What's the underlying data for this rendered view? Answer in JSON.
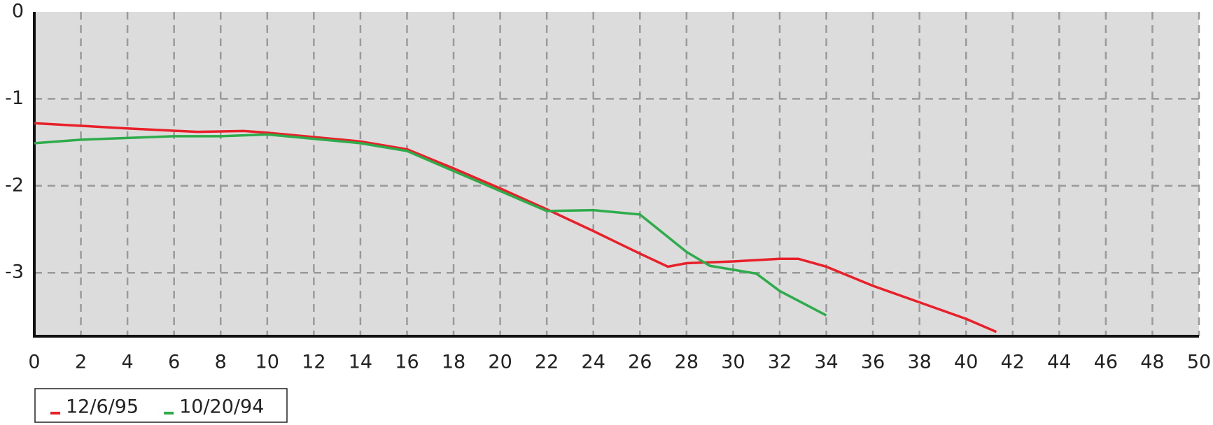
{
  "chart_data": {
    "type": "line",
    "series": [
      {
        "name": "12/6/95",
        "color": "#e8202a",
        "x": [
          0,
          2,
          4,
          7,
          9,
          10,
          14,
          16,
          18,
          20,
          22,
          24,
          26,
          27.2,
          28,
          30,
          32,
          32.8,
          34,
          36,
          38,
          40,
          41.3
        ],
        "values": [
          -1.28,
          -1.31,
          -1.34,
          -1.38,
          -1.37,
          -1.39,
          -1.49,
          -1.58,
          -1.8,
          -2.03,
          -2.27,
          -2.52,
          -2.78,
          -2.93,
          -2.89,
          -2.87,
          -2.84,
          -2.84,
          -2.93,
          -3.15,
          -3.34,
          -3.53,
          -3.68
        ]
      },
      {
        "name": "10/20/94",
        "color": "#2eab4a",
        "x": [
          0,
          2,
          4,
          6,
          8,
          10,
          14,
          16,
          18,
          20,
          22,
          24,
          26,
          28,
          29,
          31,
          32,
          34
        ],
        "values": [
          -1.51,
          -1.47,
          -1.45,
          -1.43,
          -1.43,
          -1.41,
          -1.51,
          -1.6,
          -1.83,
          -2.06,
          -2.29,
          -2.28,
          -2.33,
          -2.76,
          -2.92,
          -3.01,
          -3.21,
          -3.49
        ]
      }
    ],
    "xlim": [
      0,
      50
    ],
    "xticks": [
      0,
      2,
      4,
      6,
      8,
      10,
      12,
      14,
      16,
      18,
      20,
      22,
      24,
      26,
      28,
      30,
      32,
      34,
      36,
      38,
      40,
      42,
      44,
      46,
      48,
      50
    ],
    "ylim": [
      -3.73,
      0
    ],
    "yticks": [
      0,
      -1,
      -2,
      -3
    ],
    "grid": true
  }
}
